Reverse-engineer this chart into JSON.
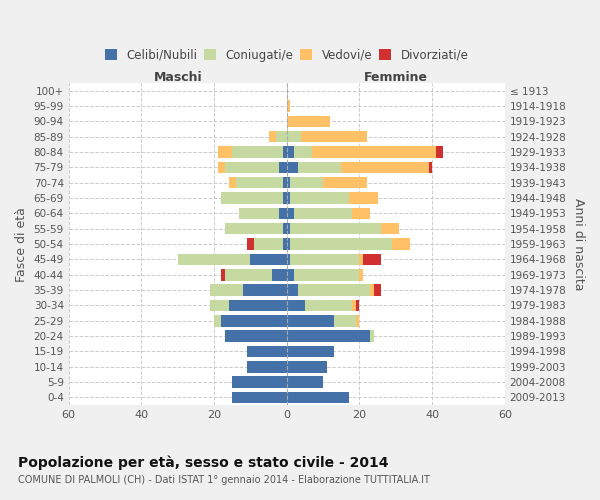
{
  "age_groups": [
    "0-4",
    "5-9",
    "10-14",
    "15-19",
    "20-24",
    "25-29",
    "30-34",
    "35-39",
    "40-44",
    "45-49",
    "50-54",
    "55-59",
    "60-64",
    "65-69",
    "70-74",
    "75-79",
    "80-84",
    "85-89",
    "90-94",
    "95-99",
    "100+"
  ],
  "birth_years": [
    "2009-2013",
    "2004-2008",
    "1999-2003",
    "1994-1998",
    "1989-1993",
    "1984-1988",
    "1979-1983",
    "1974-1978",
    "1969-1973",
    "1964-1968",
    "1959-1963",
    "1954-1958",
    "1949-1953",
    "1944-1948",
    "1939-1943",
    "1934-1938",
    "1929-1933",
    "1924-1928",
    "1919-1923",
    "1914-1918",
    "≤ 1913"
  ],
  "males": {
    "celibi": [
      15,
      15,
      11,
      11,
      17,
      18,
      16,
      12,
      4,
      10,
      1,
      1,
      2,
      1,
      1,
      2,
      1,
      0,
      0,
      0,
      0
    ],
    "coniugati": [
      0,
      0,
      0,
      0,
      0,
      2,
      5,
      9,
      13,
      20,
      8,
      16,
      11,
      17,
      13,
      15,
      14,
      3,
      0,
      0,
      0
    ],
    "vedovi": [
      0,
      0,
      0,
      0,
      0,
      0,
      0,
      0,
      0,
      0,
      0,
      0,
      0,
      0,
      2,
      2,
      4,
      2,
      0,
      0,
      0
    ],
    "divorziati": [
      0,
      0,
      0,
      0,
      0,
      0,
      0,
      0,
      1,
      0,
      2,
      0,
      0,
      0,
      0,
      0,
      0,
      0,
      0,
      0,
      0
    ]
  },
  "females": {
    "nubili": [
      17,
      10,
      11,
      13,
      23,
      13,
      5,
      3,
      2,
      1,
      1,
      1,
      2,
      1,
      1,
      3,
      2,
      0,
      0,
      0,
      0
    ],
    "coniugate": [
      0,
      0,
      0,
      0,
      1,
      6,
      13,
      20,
      18,
      19,
      28,
      25,
      16,
      16,
      9,
      12,
      5,
      4,
      0,
      0,
      0
    ],
    "vedove": [
      0,
      0,
      0,
      0,
      0,
      1,
      1,
      1,
      1,
      1,
      5,
      5,
      5,
      8,
      12,
      24,
      34,
      18,
      12,
      1,
      0
    ],
    "divorziate": [
      0,
      0,
      0,
      0,
      0,
      0,
      1,
      2,
      0,
      5,
      0,
      0,
      0,
      0,
      0,
      1,
      2,
      0,
      0,
      0,
      0
    ]
  },
  "colors": {
    "celibi": "#4472a8",
    "coniugati": "#c5d9a0",
    "vedovi": "#ffc066",
    "divorziati": "#d03030"
  },
  "xlim": 60,
  "title": "Popolazione per età, sesso e stato civile - 2014",
  "subtitle": "COMUNE DI PALMOLI (CH) - Dati ISTAT 1° gennaio 2014 - Elaborazione TUTTITALIA.IT",
  "ylabel_left": "Fasce di età",
  "ylabel_right": "Anni di nascita",
  "xlabel_maschi": "Maschi",
  "xlabel_femmine": "Femmine",
  "bg_color": "#f0f0f0",
  "plot_bg": "#ffffff"
}
